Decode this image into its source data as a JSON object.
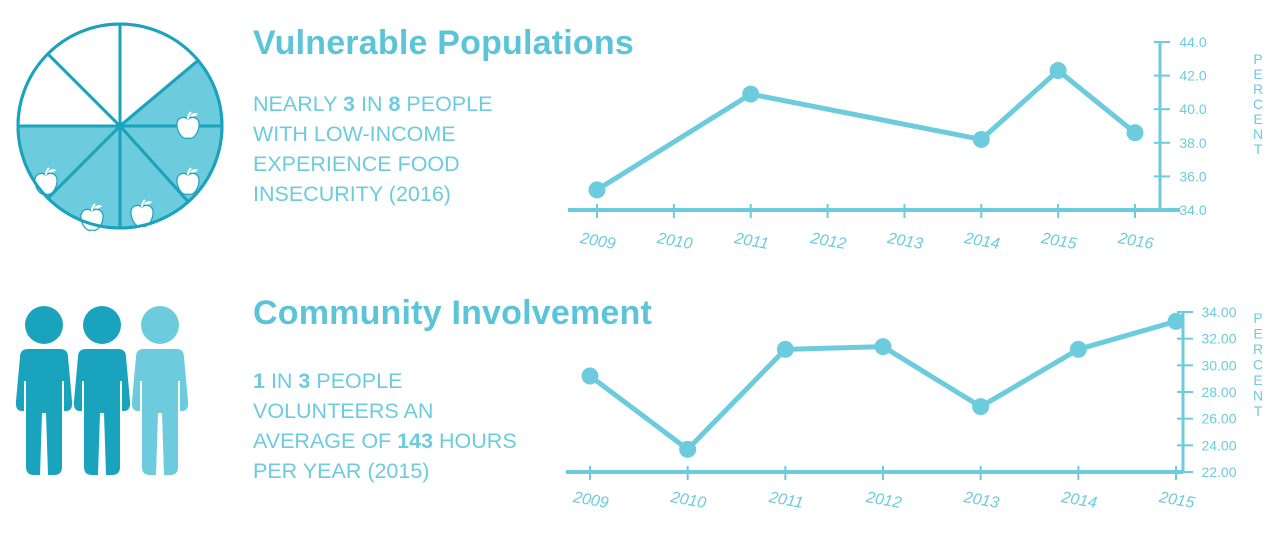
{
  "colors": {
    "accent": "#6ccbdc",
    "title": "#5cc4d8",
    "pie_fill": "#6ccbdc",
    "pie_stroke": "#1aa3bc",
    "person_dark": "#1aa3bc",
    "person_light": "#6ccbdc"
  },
  "section1": {
    "title": "Vulnerable Populations",
    "stat": {
      "l1a": "Nearly ",
      "l1n1": "3",
      "l1b": " in ",
      "l1n2": "8",
      "l1c": " people",
      "l2": "with low-income",
      "l3": "experience food",
      "l4": "insecurity (2016)"
    },
    "pie": {
      "total_slices": 8,
      "highlighted_slices": 3,
      "icon": "apple-icon"
    }
  },
  "section2": {
    "title": "Community Involvement",
    "stat": {
      "l1n1": "1",
      "l1a": " in ",
      "l1n2": "3",
      "l1b": " people",
      "l2": "volunteers an",
      "l3a": "average of ",
      "l3n": "143",
      "l3b": " hours",
      "l4": "per year (2015)"
    },
    "people": {
      "count": 3,
      "icon": "person-icon"
    }
  },
  "chart_data": [
    {
      "type": "line",
      "title": "Vulnerable Populations",
      "ylabel": "PERCENT",
      "categories": [
        "2009",
        "2010",
        "2011",
        "2012",
        "2013",
        "2014",
        "2015",
        "2016"
      ],
      "points": [
        {
          "x": "2009",
          "y": 35.2
        },
        {
          "x": "2011",
          "y": 40.9
        },
        {
          "x": "2014",
          "y": 38.2
        },
        {
          "x": "2015",
          "y": 42.3
        },
        {
          "x": "2016",
          "y": 38.6
        }
      ],
      "ylim": [
        34.0,
        44.0
      ],
      "yticks": [
        "34.0",
        "36.0",
        "38.0",
        "40.0",
        "42.0",
        "44.0"
      ],
      "grid": false,
      "axis_side": "right"
    },
    {
      "type": "line",
      "title": "Community Involvement",
      "ylabel": "PERCENT",
      "categories": [
        "2009",
        "2010",
        "2011",
        "2012",
        "2013",
        "2014",
        "2015"
      ],
      "points": [
        {
          "x": "2009",
          "y": 29.2
        },
        {
          "x": "2010",
          "y": 23.7
        },
        {
          "x": "2011",
          "y": 31.2
        },
        {
          "x": "2012",
          "y": 31.4
        },
        {
          "x": "2013",
          "y": 26.9
        },
        {
          "x": "2014",
          "y": 31.2
        },
        {
          "x": "2015",
          "y": 33.3
        }
      ],
      "ylim": [
        22.0,
        34.0
      ],
      "yticks": [
        "22.00",
        "24.00",
        "26.00",
        "28.00",
        "30.00",
        "32.00",
        "34.00"
      ],
      "grid": false,
      "axis_side": "right"
    }
  ]
}
